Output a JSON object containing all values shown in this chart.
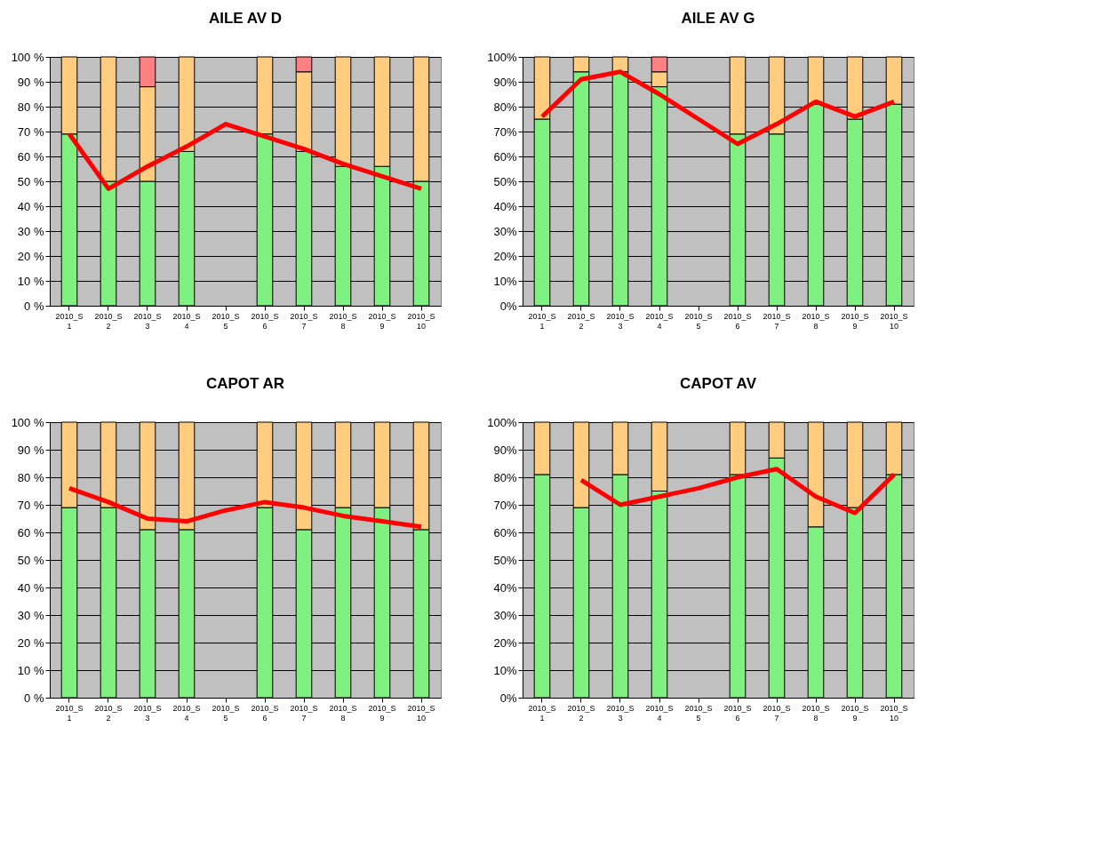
{
  "chart_data": [
    {
      "type": "bar",
      "title": "AILE AV D",
      "stacked": true,
      "grid": "y",
      "categories": [
        "2010_S\n1",
        "2010_S\n2",
        "2010_S\n3",
        "2010_S\n4",
        "2010_S\n5",
        "2010_S\n6",
        "2010_S\n7",
        "2010_S\n8",
        "2010_S\n9",
        "2010_S\n10"
      ],
      "ylim": [
        0,
        100
      ],
      "yticks": [
        {
          "value": 0,
          "label": "0 %"
        },
        {
          "value": 10,
          "label": "10 %"
        },
        {
          "value": 20,
          "label": "20 %"
        },
        {
          "value": 30,
          "label": "30 %"
        },
        {
          "value": 40,
          "label": "40 %"
        },
        {
          "value": 50,
          "label": "50 %"
        },
        {
          "value": 60,
          "label": "60 %"
        },
        {
          "value": 70,
          "label": "70 %"
        },
        {
          "value": 80,
          "label": "80 %"
        },
        {
          "value": 90,
          "label": "90 %"
        },
        {
          "value": 100,
          "label": "100 %"
        }
      ],
      "series": [
        {
          "color": "#80f080",
          "values": [
            69,
            50,
            50,
            62,
            null,
            69,
            62,
            56,
            56,
            50
          ]
        },
        {
          "color": "#ffcc80",
          "values": [
            31,
            50,
            38,
            38,
            null,
            31,
            32,
            44,
            44,
            50
          ]
        },
        {
          "color": "#ff8080",
          "values": [
            null,
            null,
            12,
            null,
            null,
            null,
            6,
            null,
            null,
            null
          ]
        },
        {
          "type": "line",
          "color": "#ff0000",
          "values": [
            69,
            47,
            56,
            64,
            73,
            68,
            63,
            57,
            52,
            47
          ]
        }
      ]
    },
    {
      "type": "bar",
      "title": "AILE AV G",
      "stacked": true,
      "grid": "y",
      "categories": [
        "2010_S\n1",
        "2010_S\n2",
        "2010_S\n3",
        "2010_S\n4",
        "2010_S\n5",
        "2010_S\n6",
        "2010_S\n7",
        "2010_S\n8",
        "2010_S\n9",
        "2010_S\n10"
      ],
      "ylim": [
        0,
        100
      ],
      "yticks": [
        {
          "value": 0,
          "label": "0%"
        },
        {
          "value": 10,
          "label": "10%"
        },
        {
          "value": 20,
          "label": "20%"
        },
        {
          "value": 30,
          "label": "30%"
        },
        {
          "value": 40,
          "label": "40%"
        },
        {
          "value": 50,
          "label": "50%"
        },
        {
          "value": 60,
          "label": "60%"
        },
        {
          "value": 70,
          "label": "70%"
        },
        {
          "value": 80,
          "label": "80%"
        },
        {
          "value": 90,
          "label": "90%"
        },
        {
          "value": 100,
          "label": "100%"
        }
      ],
      "series": [
        {
          "color": "#80f080",
          "values": [
            75,
            94,
            94,
            88,
            null,
            69,
            69,
            81,
            75,
            81
          ]
        },
        {
          "color": "#ffcc80",
          "values": [
            25,
            6,
            6,
            6,
            null,
            31,
            31,
            19,
            25,
            19
          ]
        },
        {
          "color": "#ff8080",
          "values": [
            null,
            null,
            null,
            6,
            null,
            null,
            null,
            null,
            null,
            null
          ]
        },
        {
          "type": "line",
          "color": "#ff0000",
          "values": [
            76,
            91,
            94,
            85,
            75,
            65,
            73,
            82,
            76,
            82
          ]
        }
      ]
    },
    {
      "type": "bar",
      "title": "CAPOT AR",
      "stacked": true,
      "grid": "y",
      "categories": [
        "2010_S\n1",
        "2010_S\n2",
        "2010_S\n3",
        "2010_S\n4",
        "2010_S\n5",
        "2010_S\n6",
        "2010_S\n7",
        "2010_S\n8",
        "2010_S\n9",
        "2010_S\n10"
      ],
      "ylim": [
        0,
        100
      ],
      "yticks": [
        {
          "value": 0,
          "label": "0 %"
        },
        {
          "value": 10,
          "label": "10 %"
        },
        {
          "value": 20,
          "label": "20 %"
        },
        {
          "value": 30,
          "label": "30 %"
        },
        {
          "value": 40,
          "label": "40 %"
        },
        {
          "value": 50,
          "label": "50 %"
        },
        {
          "value": 60,
          "label": "60 %"
        },
        {
          "value": 70,
          "label": "70 %"
        },
        {
          "value": 80,
          "label": "80 %"
        },
        {
          "value": 90,
          "label": "90 %"
        },
        {
          "value": 100,
          "label": "100 %"
        }
      ],
      "series": [
        {
          "color": "#80f080",
          "values": [
            69,
            69,
            61,
            61,
            null,
            69,
            61,
            69,
            69,
            61
          ]
        },
        {
          "color": "#ffcc80",
          "values": [
            31,
            31,
            39,
            39,
            null,
            31,
            39,
            31,
            31,
            39
          ]
        },
        {
          "type": "line",
          "color": "#ff0000",
          "values": [
            76,
            71,
            65,
            64,
            68,
            71,
            69,
            66,
            64,
            62
          ]
        }
      ]
    },
    {
      "type": "bar",
      "title": "CAPOT AV",
      "stacked": true,
      "grid": "y",
      "categories": [
        "2010_S\n1",
        "2010_S\n2",
        "2010_S\n3",
        "2010_S\n4",
        "2010_S\n5",
        "2010_S\n6",
        "2010_S\n7",
        "2010_S\n8",
        "2010_S\n9",
        "2010_S\n10"
      ],
      "ylim": [
        0,
        100
      ],
      "yticks": [
        {
          "value": 0,
          "label": "0%"
        },
        {
          "value": 10,
          "label": "10%"
        },
        {
          "value": 20,
          "label": "20%"
        },
        {
          "value": 30,
          "label": "30%"
        },
        {
          "value": 40,
          "label": "40%"
        },
        {
          "value": 50,
          "label": "50%"
        },
        {
          "value": 60,
          "label": "60%"
        },
        {
          "value": 70,
          "label": "70%"
        },
        {
          "value": 80,
          "label": "80%"
        },
        {
          "value": 90,
          "label": "90%"
        },
        {
          "value": 100,
          "label": "100%"
        }
      ],
      "series": [
        {
          "color": "#80f080",
          "values": [
            81,
            69,
            81,
            75,
            null,
            81,
            87,
            62,
            69,
            81
          ]
        },
        {
          "color": "#ffcc80",
          "values": [
            19,
            31,
            19,
            25,
            null,
            19,
            13,
            38,
            31,
            19
          ]
        },
        {
          "type": "line",
          "color": "#ff0000",
          "values": [
            null,
            79,
            70,
            73,
            76,
            80,
            83,
            73,
            67,
            81
          ]
        }
      ]
    }
  ]
}
